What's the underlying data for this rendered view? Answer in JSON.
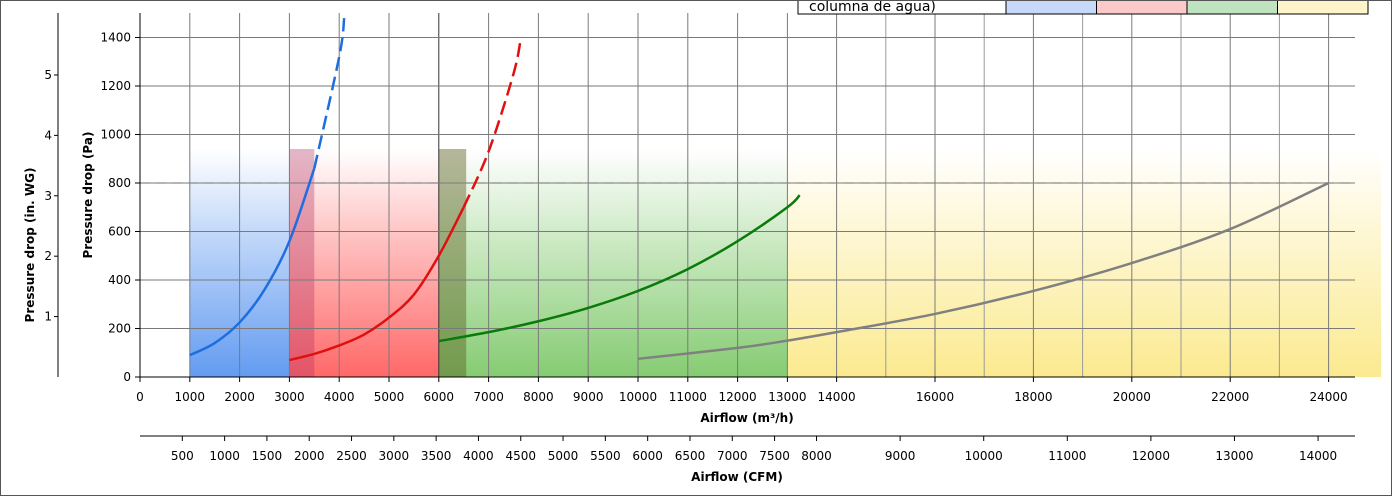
{
  "chart_data": {
    "type": "line",
    "xlabel": "Airflow (m³/h)",
    "x2label": "Airflow (CFM)",
    "ylabel": "Pressure drop (Pa)",
    "y2label": "Pressure drop (in. WG)",
    "ylim": [
      0,
      1500
    ],
    "y_ticks": [
      0,
      200,
      400,
      600,
      800,
      1000,
      1200,
      1400
    ],
    "y2_ticks": [
      "1",
      "2",
      "3",
      "4",
      "5"
    ],
    "x_tick_labels": [
      "0",
      "1000",
      "2000",
      "3000",
      "4000",
      "5000",
      "6000",
      "7000",
      "8000",
      "9000",
      "10000",
      "11000",
      "12000",
      "13000",
      "14000",
      "16000",
      "18000",
      "20000",
      "22000",
      "24000"
    ],
    "x2_tick_labels": [
      "500",
      "1000",
      "1500",
      "2000",
      "2500",
      "3000",
      "3500",
      "4000",
      "4500",
      "5000",
      "5500",
      "6000",
      "6500",
      "7000",
      "7500",
      "8000",
      "9000",
      "10000",
      "11000",
      "12000",
      "13000",
      "14000"
    ],
    "reference_line": 800,
    "legend_label": "columna de agua)",
    "colors": {
      "blue": "#1e6ee0",
      "red": "#e01010",
      "green": "#0a7a0a",
      "gray": "#808080"
    },
    "zones": [
      {
        "x_start": 1000,
        "x_end": 3000,
        "color": "#5b96f0"
      },
      {
        "x_start": 3000,
        "x_end": 6000,
        "color": "#ff6060"
      },
      {
        "x_start": 6000,
        "x_end": 13000,
        "color": "#7fc96b"
      },
      {
        "x_start": 13000,
        "x_end": 24000,
        "color": "#fbe98a"
      }
    ],
    "series": [
      {
        "color": "#1e6ee0",
        "x": [
          1000,
          1500,
          2000,
          2500,
          3000,
          3500,
          4000,
          4100
        ],
        "y": [
          90,
          140,
          225,
          360,
          560,
          860,
          1320,
          1480
        ],
        "dashed_from": 3500
      },
      {
        "color": "#e01010",
        "x": [
          3000,
          3500,
          4000,
          4500,
          5000,
          5500,
          6000,
          6500,
          7000,
          7500,
          7650
        ],
        "y": [
          70,
          95,
          130,
          175,
          245,
          340,
          500,
          700,
          930,
          1250,
          1400
        ],
        "dashed_from": 6900
      },
      {
        "color": "#0a7a0a",
        "x": [
          6000,
          7000,
          8000,
          9000,
          10000,
          11000,
          12000,
          13000,
          13250
        ],
        "y": [
          148,
          185,
          230,
          285,
          355,
          445,
          560,
          700,
          750
        ],
        "dashed_from": null
      },
      {
        "color": "#808080",
        "x": [
          10000,
          12000,
          13000,
          14000,
          16000,
          18000,
          20000,
          22000,
          24000
        ],
        "y": [
          75,
          120,
          150,
          185,
          260,
          355,
          470,
          610,
          800
        ],
        "dashed_from": null
      }
    ]
  }
}
